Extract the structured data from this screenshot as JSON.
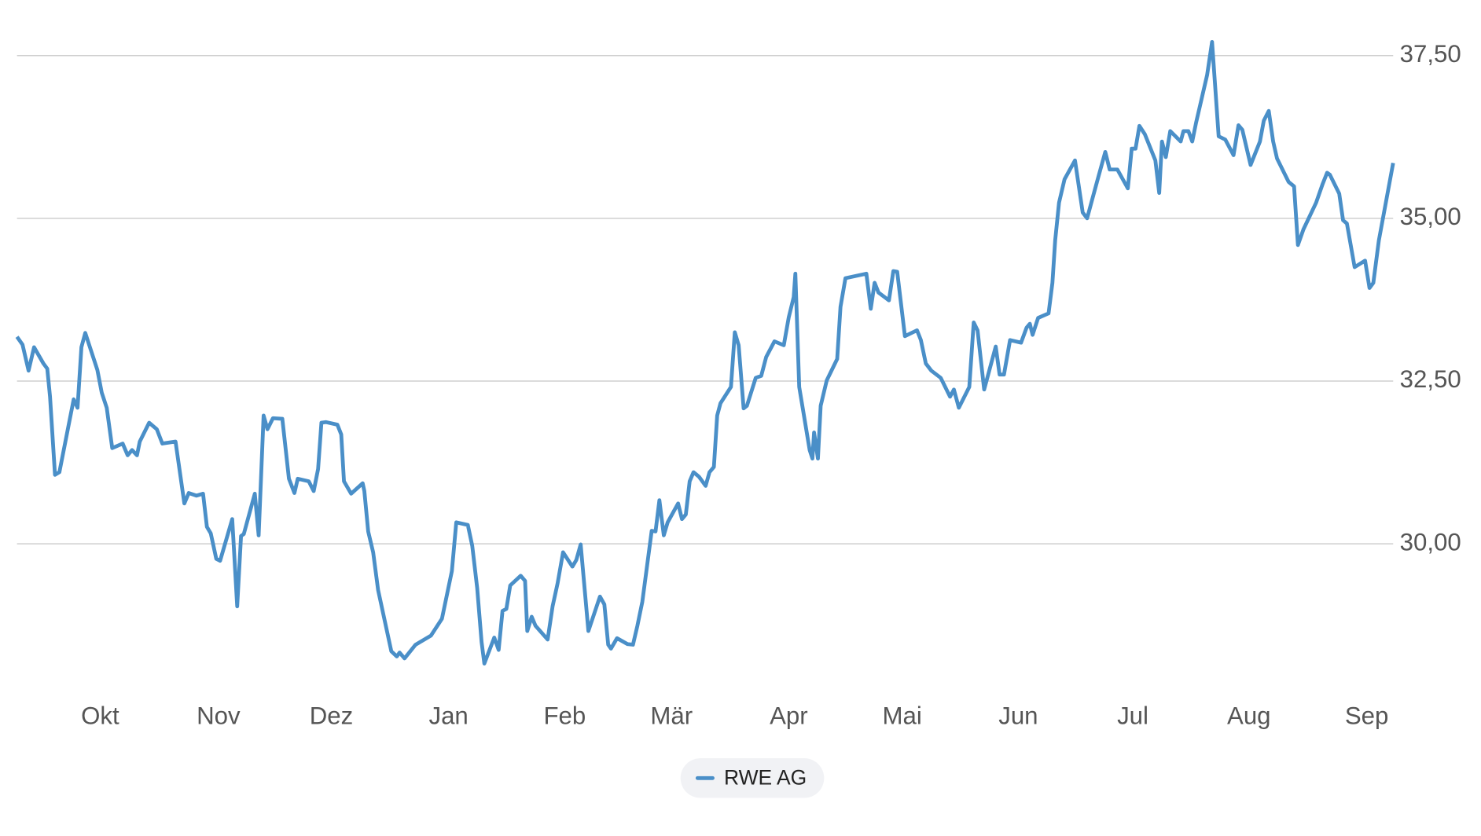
{
  "chart_data": {
    "type": "line",
    "series": [
      {
        "name": "RWE AG",
        "color": "#4a8fc8",
        "x": [
          0,
          1.0,
          2.1,
          3.1,
          4.8,
          5.5,
          6.0,
          6.9,
          7.7,
          10.3,
          11.0,
          11.7,
          12.4,
          14.6,
          15.4,
          16.3,
          17.3,
          19.2,
          20.1,
          20.9,
          21.8,
          22.3,
          24.0,
          25.4,
          26.4,
          28.8,
          30.4,
          31.2,
          32.6,
          33.8,
          34.5,
          35.2,
          36.2,
          36.9,
          39.1,
          40.0,
          40.7,
          41.2,
          43.2,
          43.9,
          44.8,
          45.5,
          46.5,
          48.2,
          49.4,
          50.4,
          51.0,
          53.0,
          53.9,
          54.7,
          55.3,
          56.1,
          58.2,
          58.9,
          59.4,
          60.7,
          62.8,
          63.1,
          63.8,
          64.7,
          65.6,
          68.0,
          69.0,
          69.5,
          70.4,
          72.4,
          75.2,
          77.2,
          79.0,
          79.8,
          81.9,
          82.7,
          83.6,
          84.4,
          84.9,
          86.7,
          87.5,
          88.2,
          88.9,
          89.6,
          91.5,
          92.3,
          92.7,
          93.5,
          94.2,
          96.4,
          97.3,
          98.2,
          99.2,
          100.9,
          101.6,
          102.4,
          103.8,
          105.9,
          106.7,
          107.4,
          107.9,
          109.0,
          110.9,
          111.9,
          112.7,
          113.6,
          115.3,
          116.0,
          116.7,
          117.5,
          118.2,
          120.1,
          120.8,
          121.5,
          122.2,
          122.9,
          123.9,
          125.1,
          125.8,
          126.6,
          127.2,
          127.8,
          129.7,
          130.4,
          131.1,
          132.0,
          132.6,
          134.2,
          135.2,
          136.1,
          137.6,
          139.3,
          140.2,
          141.1,
          141.4,
          142.1,
          144.0,
          144.5,
          144.8,
          145.5,
          146.0,
          147.1,
          149.0,
          149.6,
          150.5,
          154.3,
          155.1,
          155.8,
          156.5,
          158.4,
          159.2,
          159.9,
          161.3,
          163.5,
          164.2,
          165.1,
          166.1,
          167.8,
          169.5,
          170.2,
          171.1,
          173.0,
          173.8,
          174.5,
          175.7,
          177.8,
          178.5,
          179.3,
          180.4,
          182.4,
          183.4,
          184.0,
          184.5,
          185.5,
          187.4,
          188.1,
          188.6,
          189.3,
          190.3,
          192.2,
          193.6,
          194.4,
          196.0,
          197.7,
          198.5,
          199.9,
          201.8,
          202.5,
          203.2,
          203.9,
          204.9,
          206.8,
          207.5,
          208.0,
          208.7,
          209.5,
          211.4,
          211.9,
          212.8,
          213.5,
          214.2,
          216.2,
          217.1,
          218.3,
          219.5,
          221.0,
          221.9,
          222.6,
          224.1,
          225.8,
          226.5,
          227.4,
          228.2,
          228.9,
          231.0,
          232.0,
          232.7,
          233.7,
          236.0,
          237.2,
          238.0,
          238.5,
          240.2,
          240.9,
          241.6,
          243.0,
          244.9,
          245.7,
          246.4,
          247.4,
          250.0
        ],
        "values": [
          33.18,
          33.06,
          32.66,
          33.02,
          32.77,
          32.69,
          32.26,
          31.06,
          31.1,
          32.22,
          32.09,
          33.02,
          33.24,
          32.67,
          32.32,
          32.09,
          31.47,
          31.54,
          31.36,
          31.44,
          31.36,
          31.57,
          31.86,
          31.76,
          31.54,
          31.57,
          30.62,
          30.78,
          30.74,
          30.77,
          30.26,
          30.16,
          29.77,
          29.74,
          30.38,
          29.04,
          30.12,
          30.15,
          30.77,
          30.13,
          31.97,
          31.76,
          31.93,
          31.92,
          31.0,
          30.78,
          31.0,
          30.96,
          30.81,
          31.15,
          31.86,
          31.87,
          31.83,
          31.68,
          30.96,
          30.77,
          30.93,
          30.81,
          30.19,
          29.87,
          29.29,
          28.35,
          28.27,
          28.33,
          28.24,
          28.45,
          28.59,
          28.85,
          29.58,
          30.33,
          30.29,
          29.97,
          29.32,
          28.49,
          28.16,
          28.56,
          28.37,
          28.97,
          29.0,
          29.36,
          29.51,
          29.43,
          28.66,
          28.88,
          28.74,
          28.53,
          29.04,
          29.39,
          29.87,
          29.65,
          29.75,
          29.99,
          28.66,
          29.19,
          29.07,
          28.45,
          28.39,
          28.55,
          28.46,
          28.45,
          28.74,
          29.11,
          30.2,
          30.19,
          30.67,
          30.13,
          30.33,
          30.62,
          30.38,
          30.45,
          30.96,
          31.1,
          31.03,
          30.89,
          31.1,
          31.18,
          31.97,
          32.16,
          32.41,
          33.25,
          33.05,
          32.08,
          32.12,
          32.55,
          32.58,
          32.87,
          33.11,
          33.05,
          33.48,
          33.79,
          34.15,
          32.41,
          31.44,
          31.31,
          31.71,
          31.31,
          32.12,
          32.51,
          32.84,
          33.64,
          34.08,
          34.15,
          33.61,
          34.01,
          33.86,
          33.74,
          34.19,
          34.18,
          33.19,
          33.28,
          33.13,
          32.77,
          32.66,
          32.55,
          32.26,
          32.37,
          32.09,
          32.41,
          33.4,
          33.28,
          32.37,
          33.03,
          32.6,
          32.6,
          33.13,
          33.09,
          33.32,
          33.38,
          33.21,
          33.47,
          33.54,
          34.01,
          34.66,
          35.24,
          35.6,
          35.89,
          35.09,
          35.0,
          35.5,
          36.02,
          35.75,
          35.75,
          35.46,
          36.07,
          36.07,
          36.42,
          36.29,
          35.89,
          35.39,
          36.18,
          35.94,
          36.34,
          36.18,
          36.34,
          36.34,
          36.18,
          36.47,
          37.2,
          37.71,
          36.26,
          36.21,
          35.97,
          36.43,
          36.36,
          35.82,
          36.18,
          36.5,
          36.65,
          36.18,
          35.92,
          35.56,
          35.49,
          34.59,
          34.83,
          35.24,
          35.53,
          35.7,
          35.67,
          35.38,
          34.97,
          34.92,
          34.25,
          34.35,
          33.93,
          34.01,
          34.66,
          35.85
        ]
      }
    ],
    "xlim": [
      0,
      250
    ],
    "xticks": [
      {
        "value": 15.1,
        "label": "Okt"
      },
      {
        "value": 36.6,
        "label": "Nov"
      },
      {
        "value": 57.1,
        "label": "Dez"
      },
      {
        "value": 78.4,
        "label": "Jan"
      },
      {
        "value": 99.5,
        "label": "Feb"
      },
      {
        "value": 118.9,
        "label": "Mär"
      },
      {
        "value": 140.2,
        "label": "Apr"
      },
      {
        "value": 160.8,
        "label": "Mai"
      },
      {
        "value": 181.9,
        "label": "Jun"
      },
      {
        "value": 202.7,
        "label": "Jul"
      },
      {
        "value": 223.8,
        "label": "Aug"
      },
      {
        "value": 245.2,
        "label": "Sep"
      }
    ],
    "ylim": [
      27.75,
      37.8
    ],
    "yticks": [
      {
        "value": 30,
        "label": "30,00"
      },
      {
        "value": 32.5,
        "label": "32,50"
      },
      {
        "value": 35,
        "label": "35,00"
      },
      {
        "value": 37.5,
        "label": "37,50"
      }
    ],
    "grid": true,
    "legend": "bottom"
  }
}
